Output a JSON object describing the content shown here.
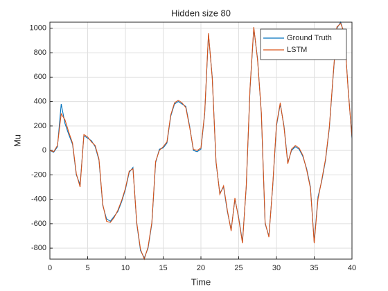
{
  "chart_data": {
    "type": "line",
    "title": "Hidden size 80",
    "xlabel": "Time",
    "ylabel": "Mu",
    "x": [
      0,
      0.5,
      1,
      1.5,
      2,
      2.5,
      3,
      3.5,
      4,
      4.5,
      5,
      5.5,
      6,
      6.5,
      7,
      7.5,
      8,
      8.5,
      9,
      9.5,
      10,
      10.5,
      11,
      11.5,
      12,
      12.5,
      13,
      13.5,
      14,
      14.5,
      15,
      15.5,
      16,
      16.5,
      17,
      17.5,
      18,
      18.5,
      19,
      19.5,
      20,
      20.5,
      21,
      21.5,
      22,
      22.5,
      23,
      23.5,
      24,
      24.5,
      25,
      25.5,
      26,
      26.5,
      27,
      27.5,
      28,
      28.5,
      29,
      29.5,
      30,
      30.5,
      31,
      31.5,
      32,
      32.5,
      33,
      33.5,
      34,
      34.5,
      35,
      35.5,
      36,
      36.5,
      37,
      37.5,
      38,
      38.5,
      39,
      39.5,
      40
    ],
    "series": [
      {
        "name": "Ground Truth",
        "color": "#0072bd",
        "values": [
          0,
          -15,
          30,
          380,
          220,
          130,
          50,
          -200,
          -280,
          120,
          100,
          80,
          30,
          -80,
          -450,
          -560,
          -580,
          -540,
          -500,
          -420,
          -320,
          -180,
          -140,
          -600,
          -820,
          -880,
          -800,
          -600,
          -100,
          10,
          20,
          60,
          280,
          380,
          400,
          380,
          360,
          200,
          0,
          -10,
          10,
          300,
          950,
          600,
          -100,
          -350,
          -300,
          -500,
          -650,
          -400,
          -550,
          -750,
          -300,
          500,
          1000,
          750,
          300,
          -600,
          -700,
          -300,
          200,
          380,
          200,
          -100,
          0,
          30,
          10,
          -50,
          -150,
          -300,
          -750,
          -380,
          -250,
          -80,
          180,
          600,
          1000,
          1050,
          950,
          500,
          100
        ]
      },
      {
        "name": "LSTM",
        "color": "#d95319",
        "values": [
          0,
          -10,
          40,
          300,
          250,
          150,
          60,
          -190,
          -300,
          130,
          110,
          70,
          40,
          -70,
          -440,
          -580,
          -590,
          -550,
          -490,
          -410,
          -310,
          -170,
          -150,
          -590,
          -810,
          -890,
          -790,
          -590,
          -90,
          0,
          30,
          70,
          290,
          390,
          410,
          390,
          350,
          190,
          10,
          0,
          20,
          310,
          960,
          590,
          -90,
          -360,
          -290,
          -490,
          -660,
          -390,
          -560,
          -760,
          -290,
          510,
          1010,
          740,
          310,
          -590,
          -710,
          -290,
          210,
          390,
          190,
          -110,
          10,
          40,
          20,
          -40,
          -160,
          -310,
          -760,
          -400,
          -240,
          -70,
          190,
          610,
          1010,
          1040,
          960,
          490,
          110
        ]
      }
    ],
    "xlim": [
      0,
      40
    ],
    "xticks": [
      0,
      5,
      10,
      15,
      20,
      25,
      30,
      35,
      40
    ],
    "ylim": [
      -890,
      1050
    ],
    "yticks": [
      -800,
      -600,
      -400,
      -200,
      0,
      200,
      400,
      600,
      800,
      1000
    ],
    "grid": true,
    "legend": "northeast"
  }
}
